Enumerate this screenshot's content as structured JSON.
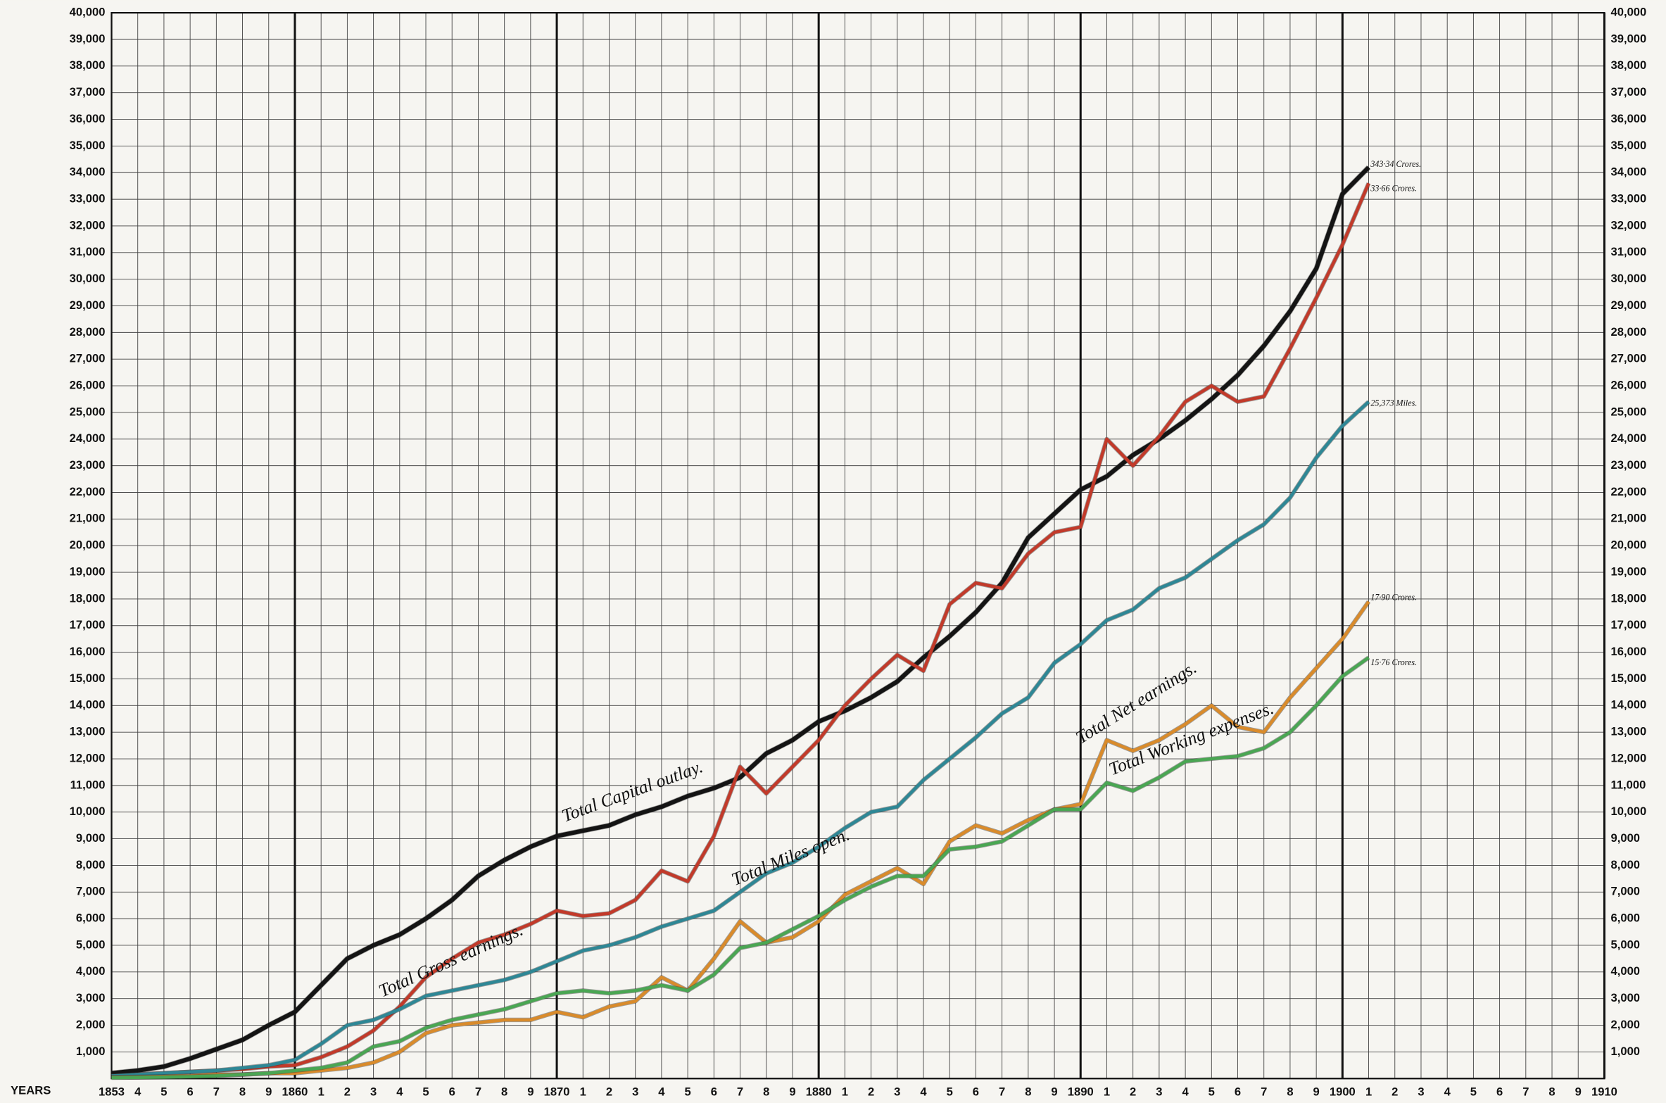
{
  "chart_data": {
    "type": "line",
    "x_label": "YEARS",
    "x": [
      1853,
      1854,
      1855,
      1856,
      1857,
      1858,
      1859,
      1860,
      1861,
      1862,
      1863,
      1864,
      1865,
      1866,
      1867,
      1868,
      1869,
      1870,
      1871,
      1872,
      1873,
      1874,
      1875,
      1876,
      1877,
      1878,
      1879,
      1880,
      1881,
      1882,
      1883,
      1884,
      1885,
      1886,
      1887,
      1888,
      1889,
      1890,
      1891,
      1892,
      1893,
      1894,
      1895,
      1896,
      1897,
      1898,
      1899,
      1900,
      1901
    ],
    "series": [
      {
        "name": "Total Capital outlay.",
        "color": "#141414",
        "values": [
          200,
          300,
          450,
          750,
          1100,
          1450,
          2000,
          2500,
          3500,
          4500,
          5000,
          5400,
          6000,
          6700,
          7600,
          8200,
          8700,
          9100,
          9300,
          9500,
          9900,
          10200,
          10600,
          10900,
          11300,
          12200,
          12700,
          13400,
          13800,
          14300,
          14900,
          15800,
          16600,
          17500,
          18600,
          20300,
          21200,
          22100,
          22600,
          23400,
          24000,
          24700,
          25500,
          26400,
          27500,
          28800,
          30400,
          33200,
          34200
        ]
      },
      {
        "name": "Total Gross earnings.",
        "color": "#c23a2a",
        "values": [
          100,
          150,
          200,
          250,
          300,
          350,
          450,
          500,
          800,
          1200,
          1800,
          2700,
          3800,
          4500,
          5100,
          5400,
          5800,
          6300,
          6100,
          6200,
          6700,
          7800,
          7400,
          9100,
          11700,
          10700,
          11700,
          12700,
          14000,
          15000,
          15900,
          15300,
          17800,
          18600,
          18400,
          19700,
          20500,
          20700,
          24000,
          23000,
          24100,
          25400,
          26000,
          25400,
          25600,
          27400,
          29300,
          31300,
          33600
        ]
      },
      {
        "name": "Total Miles open.",
        "color": "#2e8795",
        "values": [
          100,
          150,
          200,
          250,
          300,
          400,
          500,
          700,
          1300,
          2000,
          2200,
          2600,
          3100,
          3300,
          3500,
          3700,
          4000,
          4400,
          4800,
          5000,
          5300,
          5700,
          6000,
          6300,
          7000,
          7700,
          8100,
          8700,
          9400,
          10000,
          10200,
          11200,
          12000,
          12800,
          13700,
          14300,
          15600,
          16300,
          17200,
          17600,
          18400,
          18800,
          19500,
          20200,
          20800,
          21800,
          23300,
          24500,
          25400
        ]
      },
      {
        "name": "Total Net earnings.",
        "color": "#d98b2b",
        "values": [
          50,
          60,
          80,
          100,
          150,
          150,
          200,
          200,
          300,
          400,
          600,
          1000,
          1700,
          2000,
          2100,
          2200,
          2200,
          2500,
          2300,
          2700,
          2900,
          3800,
          3300,
          4500,
          5900,
          5100,
          5300,
          5900,
          6900,
          7400,
          7900,
          7300,
          8900,
          9500,
          9200,
          9700,
          10100,
          10300,
          12700,
          12300,
          12700,
          13300,
          14000,
          13200,
          13000,
          14300,
          15400,
          16500,
          17900
        ]
      },
      {
        "name": "Total Working expenses.",
        "color": "#4aa653",
        "values": [
          30,
          40,
          50,
          70,
          100,
          150,
          200,
          300,
          400,
          600,
          1200,
          1400,
          1900,
          2200,
          2400,
          2600,
          2900,
          3200,
          3300,
          3200,
          3300,
          3500,
          3300,
          3900,
          4900,
          5100,
          5600,
          6100,
          6700,
          7200,
          7600,
          7600,
          8600,
          8700,
          8900,
          9500,
          10100,
          10100,
          11100,
          10800,
          11300,
          11900,
          12000,
          12100,
          12400,
          13000,
          14000,
          15100,
          15800
        ]
      }
    ],
    "end_labels": [
      "343·34 Crores.",
      "33·66 Crores.",
      "25,373 Miles.",
      "17·90 Crores.",
      "15·76 Crores."
    ],
    "xlim": [
      1853,
      1910
    ],
    "xticks": [
      1853,
      {
        "value": 1854,
        "label": "4"
      },
      {
        "value": 1855,
        "label": "5"
      },
      {
        "value": 1856,
        "label": "6"
      },
      {
        "value": 1857,
        "label": "7"
      },
      {
        "value": 1858,
        "label": "8"
      },
      {
        "value": 1859,
        "label": "9"
      },
      1860,
      {
        "value": 1861,
        "label": "1"
      },
      {
        "value": 1862,
        "label": "2"
      },
      {
        "value": 1863,
        "label": "3"
      },
      {
        "value": 1864,
        "label": "4"
      },
      {
        "value": 1865,
        "label": "5"
      },
      {
        "value": 1866,
        "label": "6"
      },
      {
        "value": 1867,
        "label": "7"
      },
      {
        "value": 1868,
        "label": "8"
      },
      {
        "value": 1869,
        "label": "9"
      },
      1870,
      {
        "value": 1871,
        "label": "1"
      },
      {
        "value": 1872,
        "label": "2"
      },
      {
        "value": 1873,
        "label": "3"
      },
      {
        "value": 1874,
        "label": "4"
      },
      {
        "value": 1875,
        "label": "5"
      },
      {
        "value": 1876,
        "label": "6"
      },
      {
        "value": 1877,
        "label": "7"
      },
      {
        "value": 1878,
        "label": "8"
      },
      {
        "value": 1879,
        "label": "9"
      },
      1880,
      {
        "value": 1881,
        "label": "1"
      },
      {
        "value": 1882,
        "label": "2"
      },
      {
        "value": 1883,
        "label": "3"
      },
      {
        "value": 1884,
        "label": "4"
      },
      {
        "value": 1885,
        "label": "5"
      },
      {
        "value": 1886,
        "label": "6"
      },
      {
        "value": 1887,
        "label": "7"
      },
      {
        "value": 1888,
        "label": "8"
      },
      {
        "value": 1889,
        "label": "9"
      },
      1890,
      {
        "value": 1891,
        "label": "1"
      },
      {
        "value": 1892,
        "label": "2"
      },
      {
        "value": 1893,
        "label": "3"
      },
      {
        "value": 1894,
        "label": "4"
      },
      {
        "value": 1895,
        "label": "5"
      },
      {
        "value": 1896,
        "label": "6"
      },
      {
        "value": 1897,
        "label": "7"
      },
      {
        "value": 1898,
        "label": "8"
      },
      {
        "value": 1899,
        "label": "9"
      },
      1900,
      {
        "value": 1901,
        "label": "1"
      },
      {
        "value": 1902,
        "label": "2"
      },
      {
        "value": 1903,
        "label": "3"
      },
      {
        "value": 1904,
        "label": "4"
      },
      {
        "value": 1905,
        "label": "5"
      },
      {
        "value": 1906,
        "label": "6"
      },
      {
        "value": 1907,
        "label": "7"
      },
      {
        "value": 1908,
        "label": "8"
      },
      {
        "value": 1909,
        "label": "9"
      },
      1910
    ],
    "ylim": [
      0,
      40000
    ],
    "yticks": [
      {
        "value": 1000,
        "label": "1,000"
      },
      {
        "value": 2000,
        "label": "2,000"
      },
      {
        "value": 3000,
        "label": "3,000"
      },
      {
        "value": 4000,
        "label": "4,000"
      },
      {
        "value": 5000,
        "label": "5,000"
      },
      {
        "value": 6000,
        "label": "6,000"
      },
      {
        "value": 7000,
        "label": "7,000"
      },
      {
        "value": 8000,
        "label": "8,000"
      },
      {
        "value": 9000,
        "label": "9,000"
      },
      {
        "value": 10000,
        "label": "10,000"
      },
      {
        "value": 11000,
        "label": "11,000"
      },
      {
        "value": 12000,
        "label": "12,000"
      },
      {
        "value": 13000,
        "label": "13,000"
      },
      {
        "value": 14000,
        "label": "14,000"
      },
      {
        "value": 15000,
        "label": "15,000"
      },
      {
        "value": 16000,
        "label": "16,000"
      },
      {
        "value": 17000,
        "label": "17,000"
      },
      {
        "value": 18000,
        "label": "18,000"
      },
      {
        "value": 19000,
        "label": "19,000"
      },
      {
        "value": 20000,
        "label": "20,000"
      },
      {
        "value": 21000,
        "label": "21,000"
      },
      {
        "value": 22000,
        "label": "22,000"
      },
      {
        "value": 23000,
        "label": "23,000"
      },
      {
        "value": 24000,
        "label": "24,000"
      },
      {
        "value": 25000,
        "label": "25,000"
      },
      {
        "value": 26000,
        "label": "26,000"
      },
      {
        "value": 27000,
        "label": "27,000"
      },
      {
        "value": 28000,
        "label": "28,000"
      },
      {
        "value": 29000,
        "label": "29,000"
      },
      {
        "value": 30000,
        "label": "30,000"
      },
      {
        "value": 31000,
        "label": "31,000"
      },
      {
        "value": 32000,
        "label": "32,000"
      },
      {
        "value": 33000,
        "label": "33,000"
      },
      {
        "value": 34000,
        "label": "34,000"
      },
      {
        "value": 35000,
        "label": "35,000"
      },
      {
        "value": 36000,
        "label": "36,000"
      },
      {
        "value": 37000,
        "label": "37,000"
      },
      {
        "value": 38000,
        "label": "38,000"
      },
      {
        "value": 39000,
        "label": "39,000"
      },
      {
        "value": 40000,
        "label": "40,000"
      }
    ],
    "grid": true
  }
}
